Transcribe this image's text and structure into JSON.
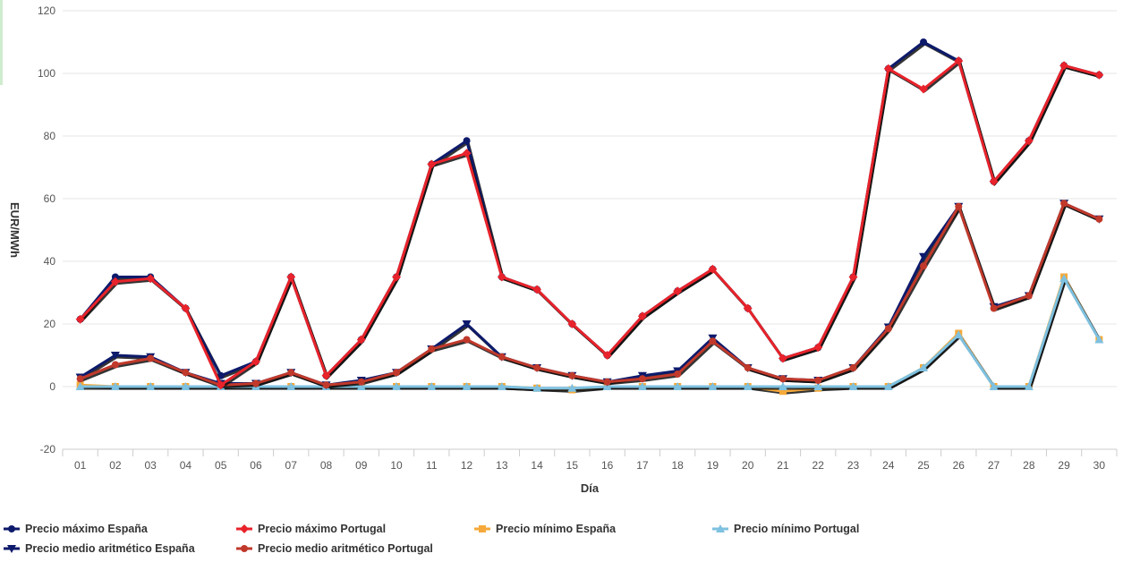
{
  "chart_data": {
    "type": "line",
    "xlabel": "Día",
    "ylabel": "EUR/MWh",
    "ylim": [
      -20,
      120
    ],
    "yticks": [
      -20,
      0,
      20,
      40,
      60,
      80,
      100,
      120
    ],
    "grid": true,
    "legend_position": "bottom-left",
    "categories": [
      "01",
      "02",
      "03",
      "04",
      "05",
      "06",
      "07",
      "08",
      "09",
      "10",
      "11",
      "12",
      "13",
      "14",
      "15",
      "16",
      "17",
      "18",
      "19",
      "20",
      "21",
      "22",
      "23",
      "24",
      "25",
      "26",
      "27",
      "28",
      "29",
      "30"
    ],
    "series": [
      {
        "name": "Precio máximo España",
        "color": "#0d1a6b",
        "marker": "circle",
        "values": [
          21.5,
          35,
          35,
          25,
          3.5,
          8,
          35,
          3.5,
          15,
          35,
          71,
          78.5,
          35,
          31,
          20,
          10,
          22.5,
          30.5,
          37.5,
          25,
          9,
          12.5,
          35,
          101.5,
          110,
          104,
          65.5,
          78.5,
          102.5,
          99.5
        ]
      },
      {
        "name": "Precio máximo Portugal",
        "color": "#e8232b",
        "marker": "diamond",
        "values": [
          21.5,
          33.5,
          34.5,
          25,
          0.5,
          8,
          35,
          3.5,
          15,
          35,
          71,
          74.5,
          35,
          31,
          20,
          10,
          22.5,
          30.5,
          37.5,
          25,
          9,
          12.5,
          35,
          101.5,
          95,
          104,
          65.5,
          78.5,
          102.5,
          99.5
        ]
      },
      {
        "name": "Precio mínimo España",
        "color": "#f5a93a",
        "marker": "square",
        "values": [
          0.5,
          0,
          0,
          0,
          0,
          0,
          0,
          0,
          0,
          0,
          0,
          0,
          0,
          -0.5,
          -1,
          0,
          0,
          0,
          0,
          0,
          -1.5,
          -0.5,
          0,
          0,
          6,
          17,
          0,
          0,
          35,
          15
        ]
      },
      {
        "name": "Precio mínimo Portugal",
        "color": "#7ec1e0",
        "marker": "triangle",
        "values": [
          0,
          0,
          0,
          0,
          0,
          0,
          0,
          0,
          0,
          0,
          0,
          0,
          0,
          -0.5,
          -0.5,
          0,
          0,
          0,
          0,
          0,
          0,
          0,
          0,
          0,
          6,
          16.5,
          0,
          0,
          34.5,
          15
        ]
      },
      {
        "name": "Precio medio aritmético España",
        "color": "#0d1a6b",
        "marker": "triangle-down",
        "values": [
          3,
          10,
          9.5,
          4.5,
          1,
          1,
          4.5,
          0.5,
          2,
          4.5,
          12,
          20,
          9.5,
          6,
          3.5,
          1.5,
          3.5,
          5,
          15.5,
          6,
          2.5,
          2,
          6,
          19,
          41.5,
          57.5,
          25.5,
          29,
          58.5,
          53.5
        ]
      },
      {
        "name": "Precio medio aritmético Portugal",
        "color": "#c0392b",
        "marker": "circle",
        "values": [
          2.5,
          7,
          9,
          4.5,
          0.5,
          1,
          4.5,
          0.5,
          1.5,
          4.5,
          12,
          15,
          9.5,
          6,
          3.5,
          1.5,
          2.5,
          4,
          14.5,
          6,
          2.5,
          2,
          6,
          18.5,
          38.5,
          57.5,
          25,
          29,
          58.5,
          53.5
        ]
      }
    ]
  }
}
